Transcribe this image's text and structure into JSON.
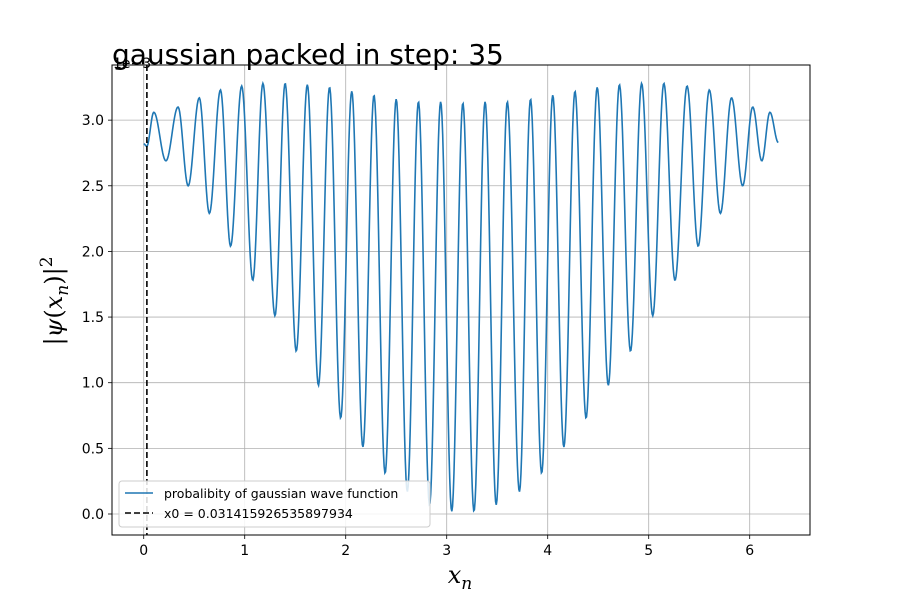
{
  "chart_data": {
    "type": "line",
    "title": "gaussian packed in step: 35",
    "xlabel": "x_n",
    "ylabel": "|ψ(x_n)|^2",
    "y_offset_label": "1e−3",
    "xlim": [
      -0.314,
      6.597
    ],
    "ylim": [
      -0.16,
      3.42
    ],
    "x_ticks": [
      0,
      1,
      2,
      3,
      4,
      5,
      6
    ],
    "y_ticks": [
      0.0,
      0.5,
      1.0,
      1.5,
      2.0,
      2.5,
      3.0
    ],
    "x_tick_labels": [
      "0",
      "1",
      "2",
      "3",
      "4",
      "5",
      "6"
    ],
    "y_tick_labels": [
      "0.0",
      "0.5",
      "1.0",
      "1.5",
      "2.0",
      "2.5",
      "3.0"
    ],
    "grid": true,
    "legend_position": "lower-left",
    "series": [
      {
        "name": "probalibity of gaussian wave function",
        "color": "#1f77b4",
        "style": "solid",
        "x_range": [
          0,
          6.2832
        ],
        "envelope_center": 3.1416,
        "peak_x": [
          0.1,
          0.34,
          0.55,
          0.76,
          0.97,
          1.18,
          1.4,
          1.62,
          1.84,
          2.06,
          2.28,
          2.5,
          2.72,
          2.94,
          3.16,
          3.38,
          3.6,
          3.83,
          4.05,
          4.27,
          4.49,
          4.71,
          4.93,
          5.15,
          5.38,
          5.6,
          5.82,
          6.03,
          6.2
        ],
        "peak_y": [
          3.06,
          3.1,
          3.17,
          3.23,
          3.26,
          3.28,
          3.28,
          3.27,
          3.25,
          3.22,
          3.19,
          3.16,
          3.14,
          3.14,
          3.13,
          3.14,
          3.14,
          3.16,
          3.19,
          3.22,
          3.25,
          3.27,
          3.28,
          3.28,
          3.26,
          3.23,
          3.17,
          3.1,
          3.06
        ],
        "trough_x": [
          0.03,
          0.22,
          0.44,
          0.65,
          0.86,
          1.08,
          1.3,
          1.51,
          1.73,
          1.95,
          2.17,
          2.39,
          2.61,
          2.83,
          3.05,
          3.27,
          3.49,
          3.72,
          3.94,
          4.16,
          4.38,
          4.6,
          4.82,
          5.04,
          5.26,
          5.49,
          5.71,
          5.93,
          6.12
        ],
        "trough_y": [
          2.8,
          2.69,
          2.5,
          2.29,
          2.04,
          1.78,
          1.51,
          1.24,
          0.98,
          0.73,
          0.51,
          0.31,
          0.17,
          0.07,
          0.02,
          0.02,
          0.07,
          0.17,
          0.31,
          0.51,
          0.73,
          0.98,
          1.24,
          1.51,
          1.78,
          2.04,
          2.29,
          2.5,
          2.69
        ],
        "end_value": 2.83
      },
      {
        "name": "x0 = 0.031415926535897934",
        "color": "#000000",
        "style": "dashed",
        "x": 0.031415926535897934
      }
    ]
  }
}
